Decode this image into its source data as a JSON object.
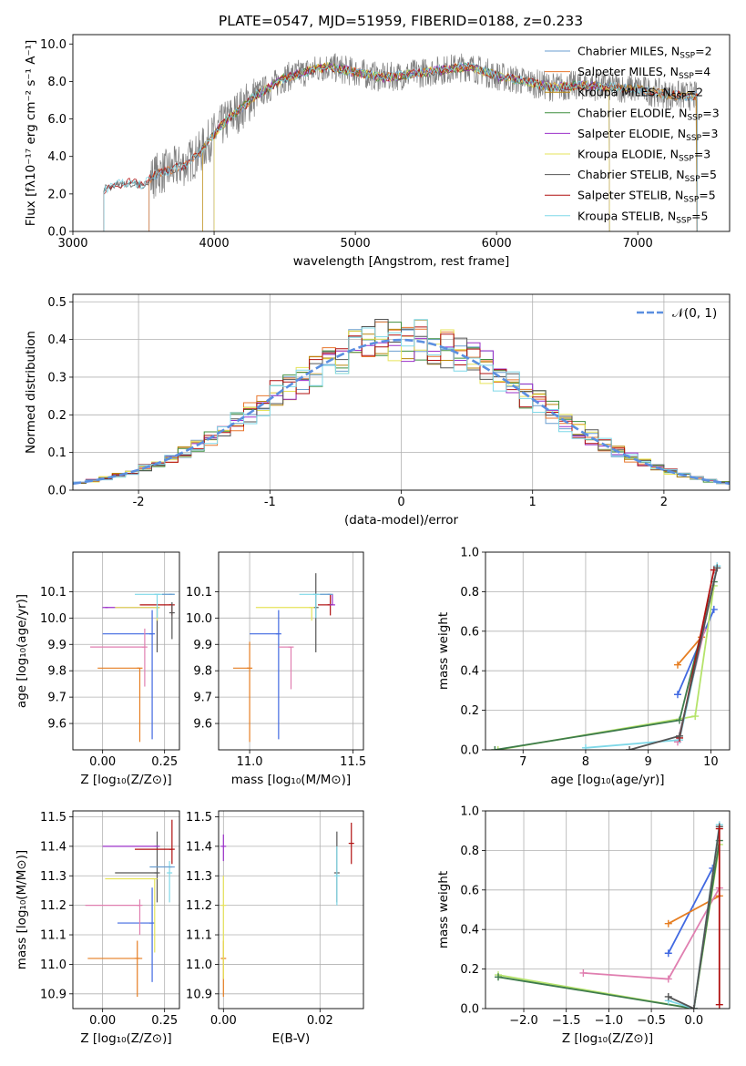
{
  "figure": {
    "title": "PLATE=0547, MJD=51959, FIBERID=0188, z=0.233"
  },
  "colors": {
    "Chabrier MILES": "#6a9ed0",
    "Salpeter MILES": "#e8772e",
    "Kroupa MILES": "#b8860b",
    "Chabrier ELODIE": "#3f8f3f",
    "Salpeter ELODIE": "#9b30c9",
    "Kroupa ELODIE": "#e6e35a",
    "Chabrier STELIB": "#555555",
    "Salpeter STELIB": "#b01010",
    "Kroupa STELIB": "#7fd8e8",
    "spectrum": "#7f7f7f",
    "normal": "#5b8fe0",
    "royal": "#4169e1",
    "orange": "#e67e22",
    "pink": "#e07fb0",
    "limegreen": "#b5e36a",
    "darkgreen": "#3e7b4c"
  },
  "chart_data": [
    {
      "id": "spectrum",
      "type": "line",
      "title": "PLATE=0547, MJD=51959, FIBERID=0188, z=0.233",
      "xlabel": "wavelength [Angstrom, rest frame]",
      "ylabel": "Flux [fλ10⁻¹⁷ erg cm⁻² s⁻¹ A⁻¹]",
      "xlim": [
        3000,
        7650
      ],
      "ylim": [
        0,
        10.5
      ],
      "xticks": [
        3000,
        4000,
        5000,
        6000,
        7000
      ],
      "yticks": [
        0,
        2,
        4,
        6,
        8,
        10
      ],
      "grid": false,
      "legend_position": "upper-right",
      "series": [
        {
          "name": "Chabrier MILES, N_SSP=2",
          "start": 3540,
          "end": 7420
        },
        {
          "name": "Salpeter MILES, N_SSP=4",
          "start": 3540,
          "end": 7420
        },
        {
          "name": "Kroupa MILES, N_SSP=2",
          "start": 3920,
          "end": 7420
        },
        {
          "name": "Chabrier ELODIE, N_SSP=3",
          "start": 4000,
          "end": 6800
        },
        {
          "name": "Salpeter ELODIE, N_SSP=3",
          "start": 4000,
          "end": 6800
        },
        {
          "name": "Kroupa ELODIE, N_SSP=3",
          "start": 4000,
          "end": 6800
        },
        {
          "name": "Chabrier STELIB, N_SSP=5",
          "start": 3220,
          "end": 7420
        },
        {
          "name": "Salpeter STELIB, N_SSP=5",
          "start": 3220,
          "end": 7420
        },
        {
          "name": "Kroupa STELIB, N_SSP=5",
          "start": 3220,
          "end": 7420
        }
      ],
      "continuum": {
        "x": [
          3220,
          3300,
          3400,
          3500,
          3600,
          3700,
          3800,
          3900,
          4000,
          4100,
          4200,
          4300,
          4400,
          4500,
          4600,
          4800,
          5000,
          5200,
          5400,
          5600,
          5800,
          6000,
          6200,
          6400,
          6600,
          6800,
          7000,
          7200,
          7420
        ],
        "y": [
          2.2,
          2.5,
          2.6,
          2.5,
          3.1,
          3.3,
          3.6,
          4.2,
          5.2,
          6.0,
          6.6,
          7.3,
          7.7,
          8.2,
          8.4,
          8.8,
          8.5,
          8.2,
          8.4,
          8.6,
          8.8,
          8.3,
          8.0,
          7.7,
          7.8,
          7.7,
          7.6,
          7.3,
          7.2
        ]
      }
    },
    {
      "id": "residuals",
      "type": "histogram",
      "xlabel": "(data-model)/error",
      "ylabel": "Normed distribution",
      "xlim": [
        -2.5,
        2.5
      ],
      "ylim": [
        0,
        0.52
      ],
      "xticks": [
        -2,
        -1,
        0,
        1,
        2
      ],
      "yticks": [
        0,
        0.1,
        0.2,
        0.3,
        0.4,
        0.5
      ],
      "grid": true,
      "legend_position": "upper-right",
      "legend": [
        "𝒩(0, 1)"
      ],
      "bin_width": 0.1,
      "normal_curve": {
        "mean": 0,
        "sigma": 1
      }
    },
    {
      "id": "age_vs_Z",
      "type": "errorbar",
      "xlabel": "Z [log₁₀(Z/Z⊙)]",
      "ylabel": "age  [log₁₀(age/yr)]",
      "xlim": [
        -0.12,
        0.31
      ],
      "ylim": [
        9.5,
        10.25
      ],
      "xticks": [
        0.0,
        0.25
      ],
      "xticklabels": [
        "0.00",
        "0.25"
      ],
      "yticks": [
        9.6,
        9.7,
        9.8,
        9.9,
        10.0,
        10.1
      ],
      "grid": true,
      "points": [
        {
          "model": "royal",
          "x": 0.2,
          "y": 9.94,
          "xerr": [
            0.2,
            0.0
          ],
          "yerr": [
            0.4,
            0.09
          ]
        },
        {
          "model": "orange",
          "x": 0.15,
          "y": 9.81,
          "xerr": [
            0.17,
            0.0
          ],
          "yerr": [
            0.28,
            0.0
          ]
        },
        {
          "model": "pink",
          "x": 0.17,
          "y": 9.89,
          "xerr": [
            0.22,
            0.0
          ],
          "yerr": [
            0.15,
            0.07
          ]
        },
        {
          "model": "Chabrier STELIB",
          "x": 0.22,
          "y": 10.04,
          "xerr": [
            0.0,
            0.0
          ],
          "yerr": [
            0.17,
            0.0
          ]
        },
        {
          "model": "Salpeter STELIB",
          "x": 0.28,
          "y": 10.05,
          "xerr": [
            0.13,
            0.0
          ],
          "yerr": [
            0.04,
            0.0
          ]
        },
        {
          "model": "Salpeter ELODIE",
          "x": 0.01,
          "y": 10.04,
          "xerr": [
            0.0,
            0.21
          ],
          "yerr": [
            0.0,
            0.0
          ]
        },
        {
          "model": "Kroupa ELODIE",
          "x": 0.22,
          "y": 10.04,
          "xerr": [
            0.17,
            0.0
          ],
          "yerr": [
            0.05,
            0.0
          ]
        },
        {
          "model": "Kroupa STELIB",
          "x": 0.22,
          "y": 10.09,
          "xerr": [
            0.09,
            0.07
          ],
          "yerr": [
            0.09,
            0.0
          ]
        },
        {
          "model": "Chabrier MILES",
          "x": 0.28,
          "y": 10.09,
          "xerr": [
            0.04,
            0.0
          ],
          "yerr": [
            0.0,
            0.0
          ]
        },
        {
          "model": "Chabrier STELIB",
          "x": 0.28,
          "y": 10.02,
          "xerr": [
            0.0,
            0.0
          ],
          "yerr": [
            0.1,
            0.04
          ]
        }
      ]
    },
    {
      "id": "age_vs_mass",
      "type": "errorbar",
      "xlabel": "mass [log₁₀(M/M⊙)]",
      "ylabel": "",
      "xlim": [
        10.85,
        11.55
      ],
      "ylim": [
        9.5,
        10.25
      ],
      "xticks": [
        11.0,
        11.5
      ],
      "xticklabels": [
        "11.0",
        "11.5"
      ],
      "yticks": [
        9.6,
        9.7,
        9.8,
        9.9,
        10.0,
        10.1
      ],
      "grid": true,
      "points": [
        {
          "model": "royal",
          "x": 11.14,
          "y": 9.94,
          "xerr": [
            0.14,
            0.0
          ],
          "yerr": [
            0.4,
            0.09
          ]
        },
        {
          "model": "orange",
          "x": 11.0,
          "y": 9.81,
          "xerr": [
            0.08,
            0.0
          ],
          "yerr": [
            0.28,
            0.1
          ]
        },
        {
          "model": "pink",
          "x": 11.2,
          "y": 9.89,
          "xerr": [
            0.06,
            0.0
          ],
          "yerr": [
            0.16,
            0.0
          ]
        },
        {
          "model": "Chabrier STELIB",
          "x": 11.32,
          "y": 10.04,
          "xerr": [
            0.0,
            0.0
          ],
          "yerr": [
            0.17,
            0.13
          ]
        },
        {
          "model": "Salpeter STELIB",
          "x": 11.39,
          "y": 10.05,
          "xerr": [
            0.06,
            0.01
          ],
          "yerr": [
            0.04,
            0.04
          ]
        },
        {
          "model": "Salpeter ELODIE",
          "x": 11.4,
          "y": 10.05,
          "xerr": [
            0.0,
            0.0
          ],
          "yerr": [
            0.0,
            0.04
          ]
        },
        {
          "model": "Kroupa ELODIE",
          "x": 11.3,
          "y": 10.04,
          "xerr": [
            0.27,
            0.0
          ],
          "yerr": [
            0.05,
            0.0
          ]
        },
        {
          "model": "Kroupa STELIB",
          "x": 11.32,
          "y": 10.09,
          "xerr": [
            0.08,
            0.07
          ],
          "yerr": [
            0.09,
            0.0
          ]
        },
        {
          "model": "Chabrier MILES",
          "x": 11.39,
          "y": 10.09,
          "xerr": [
            0.05,
            0.0
          ],
          "yerr": [
            0.0,
            0.0
          ]
        }
      ]
    },
    {
      "id": "mass_weight_vs_age",
      "type": "line",
      "xlabel": "age  [log₁₀(age/yr)]",
      "ylabel": "mass weight",
      "xlim": [
        6.4,
        10.3
      ],
      "ylim": [
        0,
        1.0
      ],
      "xticks": [
        7,
        8,
        9,
        10
      ],
      "yticks": [
        0,
        0.2,
        0.4,
        0.6,
        0.8,
        1.0
      ],
      "grid": true,
      "series": [
        {
          "model": "royal",
          "x": [
            9.47,
            10.05
          ],
          "y": [
            0.28,
            0.71
          ]
        },
        {
          "model": "orange",
          "x": [
            9.47,
            9.85
          ],
          "y": [
            0.43,
            0.57
          ]
        },
        {
          "model": "pink",
          "x": [
            9.47,
            9.9
          ],
          "y": [
            0.04,
            0.61
          ]
        },
        {
          "model": "limegreen",
          "x": [
            6.6,
            9.75,
            10.05
          ],
          "y": [
            0.0,
            0.17,
            0.83
          ]
        },
        {
          "model": "darkgreen",
          "x": [
            6.55,
            9.5,
            10.05
          ],
          "y": [
            0.0,
            0.15,
            0.85
          ]
        },
        {
          "model": "Kroupa STELIB",
          "x": [
            8.0,
            9.5,
            10.1
          ],
          "y": [
            0.01,
            0.05,
            0.93
          ]
        },
        {
          "model": "Salpeter STELIB",
          "x": [
            9.5,
            10.05
          ],
          "y": [
            0.06,
            0.91
          ]
        },
        {
          "model": "Chabrier STELIB",
          "x": [
            8.7,
            9.5,
            10.1
          ],
          "y": [
            0.0,
            0.07,
            0.92
          ]
        }
      ]
    },
    {
      "id": "mass_vs_Z",
      "type": "errorbar",
      "xlabel": "Z [log₁₀(Z/Z⊙)]",
      "ylabel": "mass [log₁₀(M/M⊙)]",
      "xlim": [
        -0.12,
        0.31
      ],
      "ylim": [
        10.85,
        11.52
      ],
      "xticks": [
        0.0,
        0.25
      ],
      "xticklabels": [
        "0.00",
        "0.25"
      ],
      "yticks": [
        10.9,
        11.0,
        11.1,
        11.2,
        11.3,
        11.4,
        11.5
      ],
      "grid": true,
      "points": [
        {
          "model": "royal",
          "x": 0.2,
          "y": 11.14,
          "xerr": [
            0.14,
            0.0
          ],
          "yerr": [
            0.2,
            0.12
          ]
        },
        {
          "model": "orange",
          "x": 0.14,
          "y": 11.02,
          "xerr": [
            0.2,
            0.02
          ],
          "yerr": [
            0.13,
            0.06
          ]
        },
        {
          "model": "pink",
          "x": 0.15,
          "y": 11.2,
          "xerr": [
            0.22,
            0.0
          ],
          "yerr": [
            0.1,
            0.02
          ]
        },
        {
          "model": "Chabrier STELIB",
          "x": 0.22,
          "y": 11.31,
          "xerr": [
            0.17,
            0.0
          ],
          "yerr": [
            0.1,
            0.14
          ]
        },
        {
          "model": "Salpeter STELIB",
          "x": 0.28,
          "y": 11.39,
          "xerr": [
            0.15,
            0.0
          ],
          "yerr": [
            0.05,
            0.1
          ]
        },
        {
          "model": "Salpeter ELODIE",
          "x": 0.22,
          "y": 11.4,
          "xerr": [
            0.22,
            0.0
          ],
          "yerr": [
            0.0,
            0.0
          ]
        },
        {
          "model": "Kroupa ELODIE",
          "x": 0.21,
          "y": 11.29,
          "xerr": [
            0.2,
            0.0
          ],
          "yerr": [
            0.25,
            0.0
          ]
        },
        {
          "model": "Kroupa STELIB",
          "x": 0.27,
          "y": 11.31,
          "xerr": [
            0.0,
            0.0
          ],
          "yerr": [
            0.1,
            0.04
          ]
        },
        {
          "model": "Chabrier MILES",
          "x": 0.28,
          "y": 11.33,
          "xerr": [
            0.09,
            0.0
          ],
          "yerr": [
            0.0,
            0.0
          ]
        }
      ]
    },
    {
      "id": "mass_vs_EBV",
      "type": "errorbar",
      "xlabel": "E(B-V)",
      "ylabel": "",
      "xlim": [
        -0.001,
        0.029
      ],
      "ylim": [
        10.85,
        11.52
      ],
      "xticks": [
        0.0,
        0.02
      ],
      "xticklabels": [
        "0.00",
        "0.02"
      ],
      "yticks": [
        10.9,
        11.0,
        11.1,
        11.2,
        11.3,
        11.4,
        11.5
      ],
      "grid": true,
      "points": [
        {
          "model": "orange",
          "x": 0.0,
          "y": 11.02,
          "xerr": [
            0.0,
            0.0
          ],
          "yerr": [
            0.13,
            0.06
          ]
        },
        {
          "model": "Salpeter ELODIE",
          "x": 0.0,
          "y": 11.4,
          "xerr": [
            0.0,
            0.0
          ],
          "yerr": [
            0.05,
            0.04
          ]
        },
        {
          "model": "Kroupa ELODIE",
          "x": 0.0,
          "y": 11.2,
          "xerr": [
            0.0,
            0.0
          ],
          "yerr": [
            0.25,
            0.1
          ]
        },
        {
          "model": "Chabrier STELIB",
          "x": 0.0235,
          "y": 11.31,
          "xerr": [
            0.0,
            0.0
          ],
          "yerr": [
            0.1,
            0.14
          ]
        },
        {
          "model": "Kroupa STELIB",
          "x": 0.0235,
          "y": 11.3,
          "xerr": [
            0.0,
            0.0
          ],
          "yerr": [
            0.1,
            0.1
          ]
        },
        {
          "model": "Salpeter STELIB",
          "x": 0.0265,
          "y": 11.41,
          "xerr": [
            0.0,
            0.0
          ],
          "yerr": [
            0.07,
            0.07
          ]
        }
      ]
    },
    {
      "id": "mass_weight_vs_Z",
      "type": "line",
      "xlabel": "Z [log₁₀(Z/Z⊙)]",
      "ylabel": "mass weight",
      "xlim": [
        -2.45,
        0.42
      ],
      "ylim": [
        0,
        1.0
      ],
      "xticks": [
        -2.0,
        -1.5,
        -1.0,
        -0.5,
        0.0
      ],
      "xticklabels": [
        "−2.0",
        "−1.5",
        "−1.0",
        "−0.5",
        "0.0"
      ],
      "yticks": [
        0,
        0.2,
        0.4,
        0.6,
        0.8,
        1.0
      ],
      "grid": true,
      "series": [
        {
          "model": "royal",
          "x": [
            -0.3,
            0.22
          ],
          "y": [
            0.28,
            0.71
          ]
        },
        {
          "model": "orange",
          "x": [
            -0.3,
            0.3
          ],
          "y": [
            0.43,
            0.57
          ]
        },
        {
          "model": "pink",
          "x": [
            -1.3,
            -0.3,
            0.3
          ],
          "y": [
            0.18,
            0.15,
            0.61
          ]
        },
        {
          "model": "limegreen",
          "x": [
            -2.3,
            0.0,
            0.3
          ],
          "y": [
            0.17,
            0.0,
            0.83
          ]
        },
        {
          "model": "darkgreen",
          "x": [
            -2.3,
            0.0,
            0.3
          ],
          "y": [
            0.16,
            0.0,
            0.85
          ]
        },
        {
          "model": "Kroupa STELIB",
          "x": [
            -0.3,
            0.0,
            0.3
          ],
          "y": [
            0.04,
            0.0,
            0.93
          ]
        },
        {
          "model": "Chabrier STELIB",
          "x": [
            -0.3,
            0.0,
            0.3
          ],
          "y": [
            0.06,
            0.0,
            0.92
          ]
        },
        {
          "model": "Salpeter STELIB",
          "x": [
            0.3,
            0.3
          ],
          "y": [
            0.02,
            0.91
          ]
        }
      ]
    }
  ]
}
